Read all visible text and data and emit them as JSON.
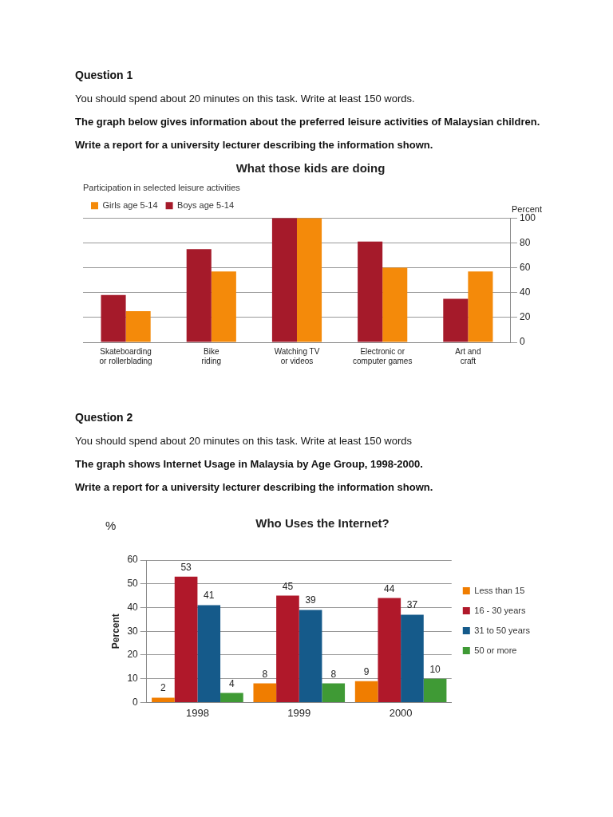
{
  "chart_data": [
    {
      "type": "bar",
      "title": "What those kids are doing",
      "subtitle": "Participation in selected leisure activities",
      "ylabel": "Percent",
      "annotations": [
        "Question 1",
        "You should spend about 20 minutes on this task. Write at least 150 words.",
        "The graph below gives information about the preferred leisure activities of Malaysian children.",
        "Write a report for a university lecturer describing the information shown."
      ],
      "categories": [
        "Skateboarding\nor rollerblading",
        "Bike\nriding",
        "Watching TV\nor videos",
        "Electronic or\ncomputer games",
        "Art and\ncraft"
      ],
      "series": [
        {
          "name": "Boys age 5-14",
          "color": "#a51a2a",
          "values": [
            38,
            75,
            100,
            81,
            35
          ]
        },
        {
          "name": "Girls age 5-14",
          "color": "#f48a0a",
          "values": [
            25,
            57,
            100,
            60,
            57
          ]
        }
      ],
      "ylim": [
        0,
        100
      ],
      "yticks": [
        0,
        20,
        40,
        60,
        80,
        100
      ],
      "grid": "y",
      "legend": "top left"
    },
    {
      "type": "bar",
      "title": "Who Uses the Internet?",
      "ylabel": "Percent",
      "annotations": [
        "Question 2",
        "You should spend about 20 minutes on this task. Write at least 150 words",
        "The graph shows Internet Usage in Malaysia by Age Group, 1998-2000.",
        "Write a report for a university lecturer describing the information shown.",
        "%"
      ],
      "categories": [
        "1998",
        "1999",
        "2000"
      ],
      "series": [
        {
          "name": "Less than 15",
          "color": "#f07d00",
          "values": [
            2,
            8,
            9
          ]
        },
        {
          "name": "16 - 30 years",
          "color": "#b0182a",
          "values": [
            53,
            45,
            44
          ]
        },
        {
          "name": "31 to 50 years",
          "color": "#155a8a",
          "values": [
            41,
            39,
            37
          ]
        },
        {
          "name": "50 or more",
          "color": "#3f9a35",
          "values": [
            4,
            8,
            10
          ]
        }
      ],
      "ylim": [
        0,
        60
      ],
      "yticks": [
        0,
        10,
        20,
        30,
        40,
        50,
        60
      ],
      "grid": "y",
      "legend": "right",
      "data_labels": true
    }
  ]
}
